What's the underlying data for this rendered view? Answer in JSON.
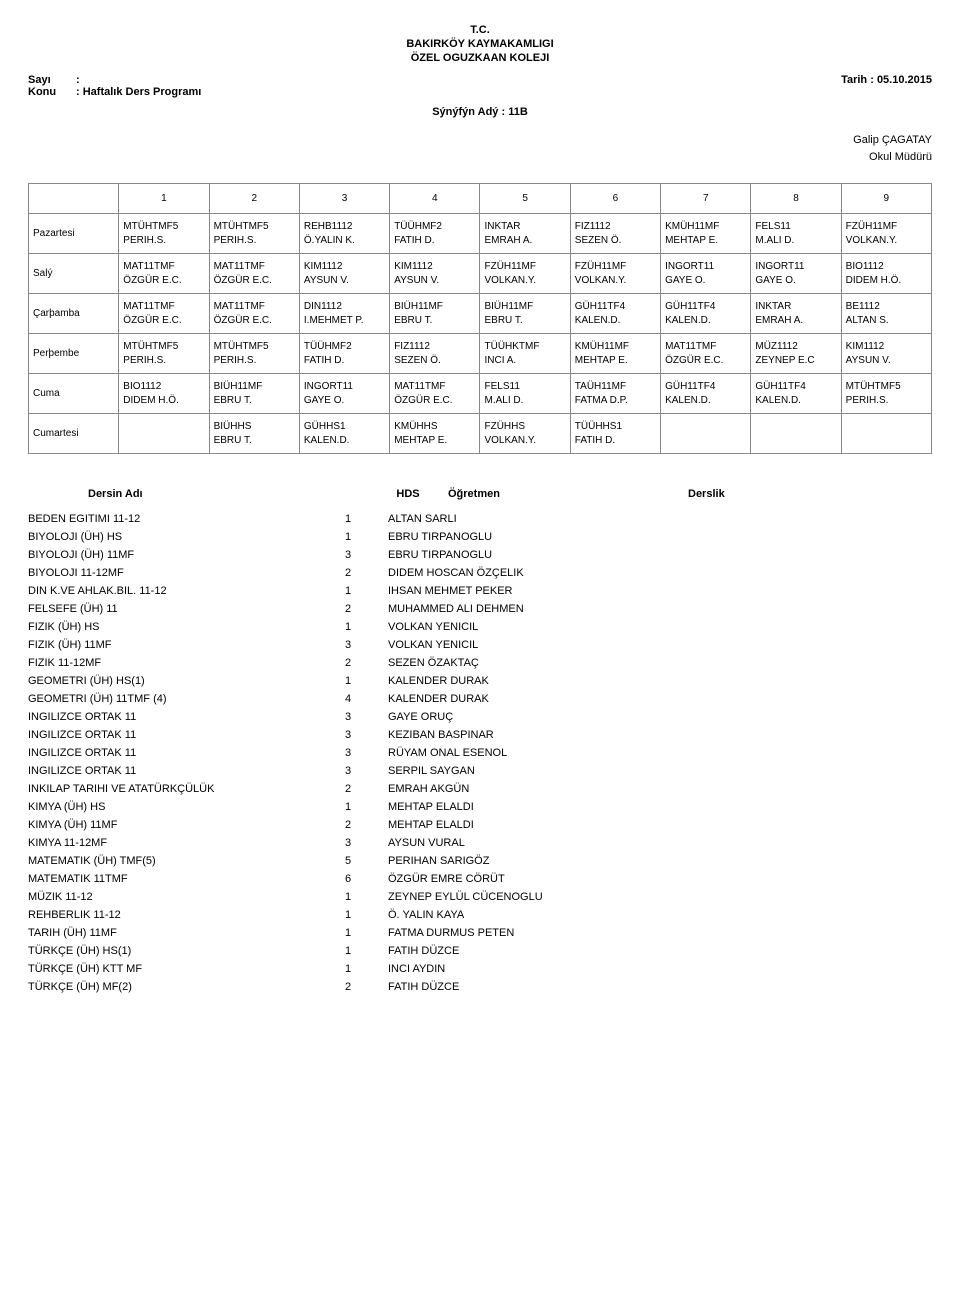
{
  "header": {
    "line1": "T.C.",
    "line2": "BAKIRKÖY KAYMAKAMLIGI",
    "line3": "ÖZEL OGUZKAAN KOLEJI"
  },
  "meta": {
    "sayi_label": "Sayı",
    "sayi_value": ":",
    "konu_label": "Konu",
    "konu_value": ": Haftalık Ders Programı",
    "tarih_label": "Tarih  :",
    "tarih_value": "05.10.2015"
  },
  "class_line": "Sýnýfýn Adý : 11B",
  "signature": {
    "name": "Galip ÇAGATAY",
    "title": "Okul Müdürü"
  },
  "schedule": {
    "periods": [
      "1",
      "2",
      "3",
      "4",
      "5",
      "6",
      "7",
      "8",
      "9"
    ],
    "days": [
      {
        "name": "Pazartesi",
        "cells": [
          {
            "l1": "MTÜHTMF5",
            "l2": "PERIH.S."
          },
          {
            "l1": "MTÜHTMF5",
            "l2": "PERIH.S."
          },
          {
            "l1": "REHB1112",
            "l2": "Ö.YALIN K."
          },
          {
            "l1": "TÜÜHMF2",
            "l2": "FATIH D."
          },
          {
            "l1": "INKTAR",
            "l2": "EMRAH A."
          },
          {
            "l1": "FIZ1112",
            "l2": "SEZEN Ö."
          },
          {
            "l1": "KMÜH11MF",
            "l2": "MEHTAP E."
          },
          {
            "l1": "FELS11",
            "l2": "M.ALI D."
          },
          {
            "l1": "FZÜH11MF",
            "l2": "VOLKAN.Y."
          }
        ]
      },
      {
        "name": "Salý",
        "cells": [
          {
            "l1": "MAT11TMF",
            "l2": "ÖZGÜR E.C."
          },
          {
            "l1": "MAT11TMF",
            "l2": "ÖZGÜR E.C."
          },
          {
            "l1": "KIM1112",
            "l2": "AYSUN V."
          },
          {
            "l1": "KIM1112",
            "l2": "AYSUN V."
          },
          {
            "l1": "FZÜH11MF",
            "l2": "VOLKAN.Y."
          },
          {
            "l1": "FZÜH11MF",
            "l2": "VOLKAN.Y."
          },
          {
            "l1": "INGORT11",
            "l2": "GAYE O."
          },
          {
            "l1": "INGORT11",
            "l2": "GAYE O."
          },
          {
            "l1": "BIO1112",
            "l2": "DIDEM H.Ö."
          }
        ]
      },
      {
        "name": "Çarþamba",
        "cells": [
          {
            "l1": "MAT11TMF",
            "l2": "ÖZGÜR E.C."
          },
          {
            "l1": "MAT11TMF",
            "l2": "ÖZGÜR E.C."
          },
          {
            "l1": "DIN1112",
            "l2": "I.MEHMET P."
          },
          {
            "l1": "BIÜH11MF",
            "l2": "EBRU T."
          },
          {
            "l1": "BIÜH11MF",
            "l2": "EBRU T."
          },
          {
            "l1": "GÜH11TF4",
            "l2": "KALEN.D."
          },
          {
            "l1": "GÜH11TF4",
            "l2": "KALEN.D."
          },
          {
            "l1": "INKTAR",
            "l2": "EMRAH A."
          },
          {
            "l1": "BE1112",
            "l2": "ALTAN S."
          }
        ]
      },
      {
        "name": "Perþembe",
        "cells": [
          {
            "l1": "MTÜHTMF5",
            "l2": "PERIH.S."
          },
          {
            "l1": "MTÜHTMF5",
            "l2": "PERIH.S."
          },
          {
            "l1": "TÜÜHMF2",
            "l2": "FATIH D."
          },
          {
            "l1": "FIZ1112",
            "l2": "SEZEN Ö."
          },
          {
            "l1": "TÜÜHKTMF",
            "l2": "INCI A."
          },
          {
            "l1": "KMÜH11MF",
            "l2": "MEHTAP E."
          },
          {
            "l1": "MAT11TMF",
            "l2": "ÖZGÜR E.C."
          },
          {
            "l1": "MÜZ1112",
            "l2": "ZEYNEP E.C"
          },
          {
            "l1": "KIM1112",
            "l2": "AYSUN V."
          }
        ]
      },
      {
        "name": "Cuma",
        "cells": [
          {
            "l1": "BIO1112",
            "l2": "DIDEM H.Ö."
          },
          {
            "l1": "BIÜH11MF",
            "l2": "EBRU T."
          },
          {
            "l1": "INGORT11",
            "l2": "GAYE O."
          },
          {
            "l1": "MAT11TMF",
            "l2": "ÖZGÜR E.C."
          },
          {
            "l1": "FELS11",
            "l2": "M.ALI D."
          },
          {
            "l1": "TAÜH11MF",
            "l2": "FATMA D.P."
          },
          {
            "l1": "GÜH11TF4",
            "l2": "KALEN.D."
          },
          {
            "l1": "GÜH11TF4",
            "l2": "KALEN.D."
          },
          {
            "l1": "MTÜHTMF5",
            "l2": "PERIH.S."
          }
        ]
      },
      {
        "name": "Cumartesi",
        "cells": [
          {
            "l1": "",
            "l2": ""
          },
          {
            "l1": "BIÜHHS",
            "l2": "EBRU T."
          },
          {
            "l1": "GÜHHS1",
            "l2": "KALEN.D."
          },
          {
            "l1": "KMÜHHS",
            "l2": "MEHTAP E."
          },
          {
            "l1": "FZÜHHS",
            "l2": "VOLKAN.Y."
          },
          {
            "l1": "TÜÜHHS1",
            "l2": "FATIH D."
          },
          {
            "l1": "",
            "l2": ""
          },
          {
            "l1": "",
            "l2": ""
          },
          {
            "l1": "",
            "l2": ""
          }
        ]
      }
    ]
  },
  "courses_header": {
    "name": "Dersin Adı",
    "hds": "HDS",
    "teacher": "Öğretmen",
    "room": "Derslik"
  },
  "courses": [
    {
      "name": "BEDEN EGITIMI 11-12",
      "hds": "1",
      "teacher": "ALTAN SARLI"
    },
    {
      "name": "BIYOLOJI (ÜH) HS",
      "hds": "1",
      "teacher": "EBRU TIRPANOGLU"
    },
    {
      "name": "BIYOLOJI (ÜH) 11MF",
      "hds": "3",
      "teacher": "EBRU TIRPANOGLU"
    },
    {
      "name": "BIYOLOJI 11-12MF",
      "hds": "2",
      "teacher": "DIDEM HOSCAN ÖZÇELIK"
    },
    {
      "name": "DIN K.VE AHLAK.BIL. 11-12",
      "hds": "1",
      "teacher": "IHSAN MEHMET PEKER"
    },
    {
      "name": "FELSEFE (ÜH) 11",
      "hds": "2",
      "teacher": "MUHAMMED ALI DEHMEN"
    },
    {
      "name": "FIZIK (ÜH) HS",
      "hds": "1",
      "teacher": "VOLKAN YENICIL"
    },
    {
      "name": "FIZIK (ÜH) 11MF",
      "hds": "3",
      "teacher": "VOLKAN YENICIL"
    },
    {
      "name": "FIZIK 11-12MF",
      "hds": "2",
      "teacher": "SEZEN ÖZAKTAÇ"
    },
    {
      "name": "GEOMETRI (ÜH) HS(1)",
      "hds": "1",
      "teacher": "KALENDER DURAK"
    },
    {
      "name": "GEOMETRI (ÜH) 11TMF (4)",
      "hds": "4",
      "teacher": "KALENDER DURAK"
    },
    {
      "name": "INGILIZCE ORTAK 11",
      "hds": "3",
      "teacher": "GAYE ORUÇ"
    },
    {
      "name": "INGILIZCE ORTAK 11",
      "hds": "3",
      "teacher": "KEZIBAN BASPINAR"
    },
    {
      "name": "INGILIZCE ORTAK 11",
      "hds": "3",
      "teacher": "RÜYAM ONAL ESENOL"
    },
    {
      "name": "INGILIZCE ORTAK 11",
      "hds": "3",
      "teacher": "SERPIL SAYGAN"
    },
    {
      "name": "INKILAP TARIHI VE ATATÜRKÇÜLÜK",
      "hds": "2",
      "teacher": "EMRAH AKGÜN"
    },
    {
      "name": "KIMYA (ÜH) HS",
      "hds": "1",
      "teacher": "MEHTAP ELALDI"
    },
    {
      "name": "KIMYA (ÜH) 11MF",
      "hds": "2",
      "teacher": "MEHTAP ELALDI"
    },
    {
      "name": "KIMYA 11-12MF",
      "hds": "3",
      "teacher": "AYSUN VURAL"
    },
    {
      "name": "MATEMATIK (ÜH) TMF(5)",
      "hds": "5",
      "teacher": "PERIHAN SARIGÖZ"
    },
    {
      "name": "MATEMATIK 11TMF",
      "hds": "6",
      "teacher": "ÖZGÜR EMRE CÖRÜT"
    },
    {
      "name": "MÜZIK 11-12",
      "hds": "1",
      "teacher": "ZEYNEP EYLÜL CÜCENOGLU"
    },
    {
      "name": "REHBERLIK 11-12",
      "hds": "1",
      "teacher": "Ö. YALIN KAYA"
    },
    {
      "name": "TARIH (ÜH) 11MF",
      "hds": "1",
      "teacher": "FATMA DURMUS PETEN"
    },
    {
      "name": "TÜRKÇE (ÜH) HS(1)",
      "hds": "1",
      "teacher": "FATIH DÜZCE"
    },
    {
      "name": "TÜRKÇE (ÜH) KTT MF",
      "hds": "1",
      "teacher": "INCI AYDIN"
    },
    {
      "name": "TÜRKÇE (ÜH) MF(2)",
      "hds": "2",
      "teacher": "FATIH DÜZCE"
    }
  ]
}
